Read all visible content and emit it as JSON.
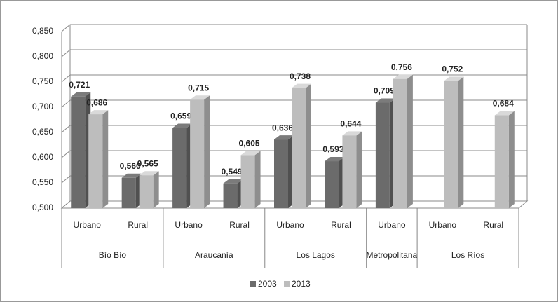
{
  "chart_data": {
    "type": "bar3d",
    "groups": [
      {
        "name": "Bío Bío",
        "categories": [
          "Urbano",
          "Rural"
        ]
      },
      {
        "name": "Araucanía",
        "categories": [
          "Urbano",
          "Rural"
        ]
      },
      {
        "name": "Los Lagos",
        "categories": [
          "Urbano",
          "Rural"
        ]
      },
      {
        "name": "Metropolitana",
        "categories": [
          "Urbano"
        ]
      },
      {
        "name": "Los Ríos",
        "categories": [
          "Urbano",
          "Rural"
        ]
      }
    ],
    "series": [
      {
        "name": "2003",
        "color": "#6b6b6b",
        "values": [
          0.721,
          0.56,
          0.659,
          0.549,
          0.636,
          0.593,
          0.709,
          null,
          null
        ],
        "value_labels": [
          "0,721",
          "0,560",
          "0,659",
          "0,549",
          "0,636",
          "0,593",
          "0,709",
          null,
          null
        ]
      },
      {
        "name": "2013",
        "color": "#bdbdbd",
        "values": [
          0.686,
          0.565,
          0.715,
          0.605,
          0.738,
          0.644,
          0.756,
          0.752,
          0.684
        ],
        "value_labels": [
          "0,686",
          "0,565",
          "0,715",
          "0,605",
          "0,738",
          "0,644",
          "0,756",
          "0,752",
          "0,684"
        ]
      }
    ],
    "ylim": [
      0.5,
      0.85
    ],
    "yticks": [
      {
        "value": 0.5,
        "label": "0,500"
      },
      {
        "value": 0.55,
        "label": "0,550"
      },
      {
        "value": 0.6,
        "label": "0,600"
      },
      {
        "value": 0.65,
        "label": "0,650"
      },
      {
        "value": 0.7,
        "label": "0,700"
      },
      {
        "value": 0.75,
        "label": "0,750"
      },
      {
        "value": 0.8,
        "label": "0,800"
      },
      {
        "value": 0.85,
        "label": "0,850"
      }
    ],
    "grid": true,
    "legend": "bottom"
  }
}
